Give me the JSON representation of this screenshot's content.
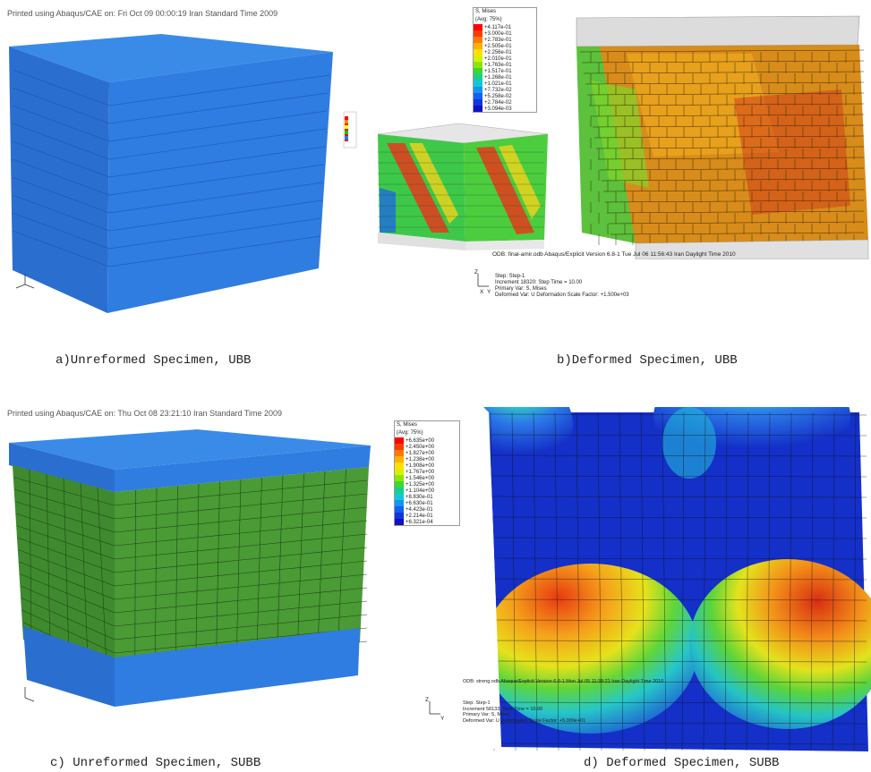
{
  "panels": {
    "a": {
      "header": "Printed using Abaqus/CAE on: Fri Oct 09 00:00:19 Iran Standard Time 2009",
      "caption": "a)Unreformed Specimen, UBB"
    },
    "b": {
      "legend_title": "S, Mises",
      "legend_avg": "(Avg: 75%)",
      "legend_values": [
        "+4.117e-01",
        "+3.000e-01",
        "+2.783e-01",
        "+2.505e-01",
        "+2.256e-01",
        "+2.010e-01",
        "+1.763e-01",
        "+1.517e-01",
        "+1.268e-01",
        "+1.021e-01",
        "+7.732e-02",
        "+5.258e-02",
        "+2.784e-02",
        "+3.094e-03"
      ],
      "odb_line": "ODB: final-amir.odb    Abaqus/Explicit Version 6.8-1    Tue Jul 06 11:56:43 Iran Daylight Time 2010",
      "step_lines": [
        "Step: Step-1",
        "Increment    18320: Step Time =   10.00",
        "Primary Var: S, Mises",
        "Deformed Var: U   Deformation Scale Factor: +1.500e+03"
      ],
      "caption": "b)Deformed Specimen, UBB"
    },
    "c": {
      "header": "Printed using Abaqus/CAE on: Thu Oct 08 23:21:10 Iran Standard Time 2009",
      "caption": "c) Unreformed Specimen, SUBB"
    },
    "d": {
      "legend_title": "S, Mises",
      "legend_avg": "(Avg: 75%)",
      "legend_values": [
        "+6.635e+00",
        "+2.450e+00",
        "+1.827e+00",
        "+1.238e+00",
        "+1.908e+00",
        "+1.767e+00",
        "+1.546e+00",
        "+1.325e+00",
        "+1.104e+00",
        "+8.830e-01",
        "+6.630e-01",
        "+4.423e-01",
        "+2.214e-01",
        "+6.321e-04"
      ],
      "odb_line": "ODB: streng.odb    Abaqus/Explicit Version 6.8-1    Mon Jul 05 11:38:21 Iran Daylight Time 2010",
      "step_lines": [
        "Step: Step-1",
        "Increment    58133: Step Time =   10.00",
        "Primary Var: S, Mises",
        "Deformed Var: U   Deformation Scale Factor: +5.000e+01"
      ],
      "caption": "d) Deformed Specimen, SUBB"
    },
    "axis_labels": {
      "x": "X",
      "y": "Y",
      "z": "Z"
    }
  },
  "colors": {
    "blue": "#2f7de1",
    "top": "#3a8be8",
    "side": "#2a6fd0",
    "green": "#4a9a35",
    "grey": "#d8d8d8"
  }
}
